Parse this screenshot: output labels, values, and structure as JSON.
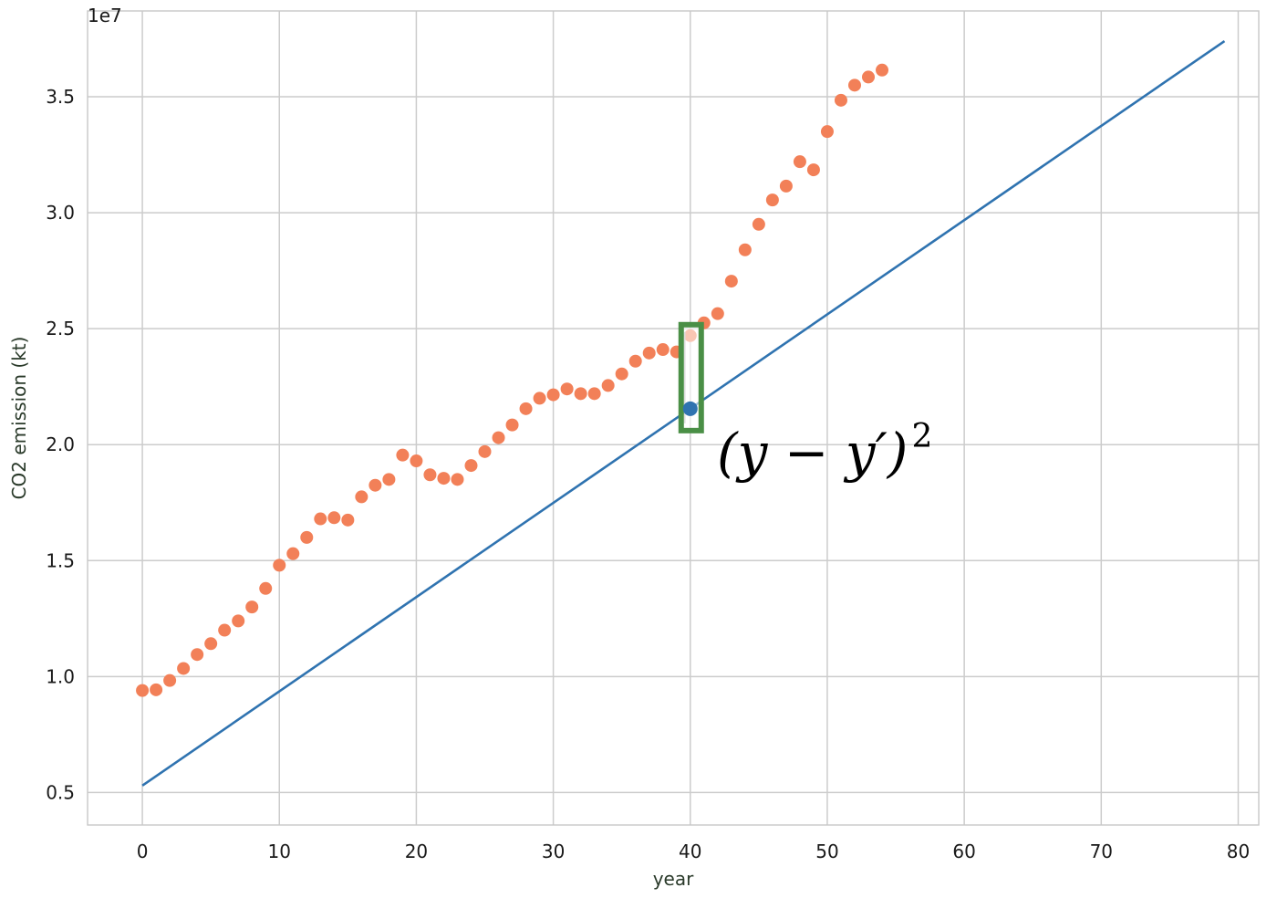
{
  "chart_data": {
    "type": "scatter",
    "xlabel": "year",
    "ylabel": "CO2 emission (kt)",
    "y_offset_label": "1e7",
    "x_ticks": [
      0,
      10,
      20,
      30,
      40,
      50,
      60,
      70,
      80
    ],
    "y_ticks": [
      0.5,
      1.0,
      1.5,
      2.0,
      2.5,
      3.0,
      3.5
    ],
    "y_tick_labels": [
      "0.5",
      "1.0",
      "1.5",
      "2.0",
      "2.5",
      "3.0",
      "3.5"
    ],
    "xlim": [
      -4,
      81.5
    ],
    "ylim": [
      0.36,
      3.87
    ],
    "grid": true,
    "scatter_color": "#f28058",
    "line_color": "#2f73b0",
    "highlight_color": "#2f73b0",
    "box_color": "#4a8f46",
    "points": [
      [
        0,
        0.94
      ],
      [
        1,
        0.943
      ],
      [
        2,
        0.983
      ],
      [
        3,
        1.035
      ],
      [
        4,
        1.095
      ],
      [
        5,
        1.142
      ],
      [
        6,
        1.2
      ],
      [
        7,
        1.24
      ],
      [
        8,
        1.3
      ],
      [
        9,
        1.38
      ],
      [
        10,
        1.48
      ],
      [
        11,
        1.53
      ],
      [
        12,
        1.6
      ],
      [
        13,
        1.68
      ],
      [
        14,
        1.685
      ],
      [
        15,
        1.675
      ],
      [
        16,
        1.775
      ],
      [
        17,
        1.825
      ],
      [
        18,
        1.85
      ],
      [
        19,
        1.955
      ],
      [
        20,
        1.93
      ],
      [
        21,
        1.87
      ],
      [
        22,
        1.855
      ],
      [
        23,
        1.85
      ],
      [
        24,
        1.91
      ],
      [
        25,
        1.97
      ],
      [
        26,
        2.03
      ],
      [
        27,
        2.085
      ],
      [
        28,
        2.155
      ],
      [
        29,
        2.2
      ],
      [
        30,
        2.215
      ],
      [
        31,
        2.24
      ],
      [
        32,
        2.22
      ],
      [
        33,
        2.22
      ],
      [
        34,
        2.255
      ],
      [
        35,
        2.305
      ],
      [
        36,
        2.36
      ],
      [
        37,
        2.395
      ],
      [
        38,
        2.41
      ],
      [
        39,
        2.4
      ],
      [
        40,
        2.47
      ],
      [
        41,
        2.525
      ],
      [
        42,
        2.565
      ],
      [
        43,
        2.705
      ],
      [
        44,
        2.84
      ],
      [
        45,
        2.95
      ],
      [
        46,
        3.055
      ],
      [
        47,
        3.115
      ],
      [
        48,
        3.22
      ],
      [
        49,
        3.185
      ],
      [
        50,
        3.35
      ],
      [
        51,
        3.485
      ],
      [
        52,
        3.55
      ],
      [
        53,
        3.585
      ],
      [
        54,
        3.615
      ]
    ],
    "fit_line": {
      "x": [
        0,
        79
      ],
      "y": [
        0.53,
        3.74
      ]
    },
    "highlight_point": [
      40,
      2.155
    ],
    "error_box": {
      "x": 40,
      "y_low": 2.155,
      "y_high": 2.47
    },
    "annotation": {
      "text": "(y − y′)",
      "superscript": "2"
    }
  }
}
